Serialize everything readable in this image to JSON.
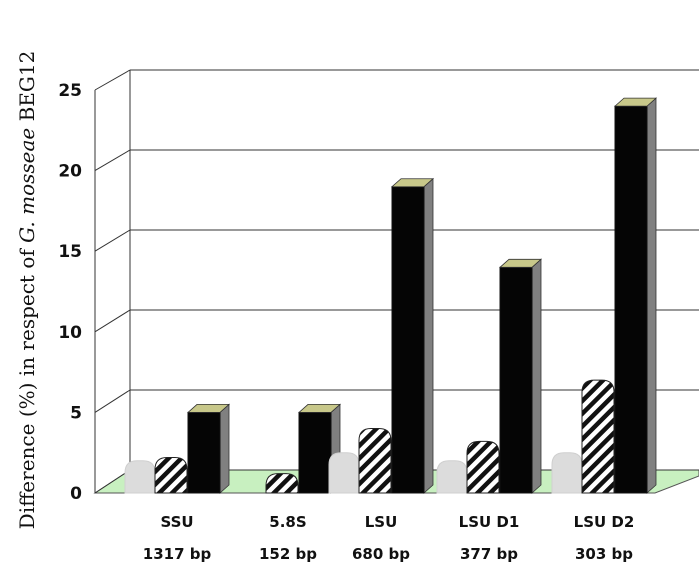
{
  "chart_data": {
    "type": "bar",
    "title": "",
    "xlabel": "",
    "ylabel": {
      "prefix": "Difference (%) in respect of ",
      "species": "G. mosseae",
      "suffix": " BEG12"
    },
    "ylim": [
      0,
      25
    ],
    "yticks": [
      0,
      5,
      10,
      15,
      20,
      25
    ],
    "grid": true,
    "categories": [
      {
        "name": "SSU",
        "length": "1317 bp"
      },
      {
        "name": "5.8S",
        "length": "152 bp"
      },
      {
        "name": "LSU",
        "length": "680 bp"
      },
      {
        "name": "LSU D1",
        "length": "377 bp"
      },
      {
        "name": "LSU D2",
        "length": "303 bp"
      }
    ],
    "series": [
      {
        "values": [
          2,
          0,
          2.5,
          2,
          2.5
        ],
        "fill": "#dcdcdc",
        "pattern": "solid"
      },
      {
        "values": [
          2.2,
          1.2,
          4,
          3.2,
          7
        ],
        "fill": "#ffffff",
        "pattern": "hatched"
      },
      {
        "values": [
          5,
          5,
          19,
          14,
          24
        ],
        "fill": "#050505",
        "pattern": "solid"
      }
    ],
    "colors": {
      "floor": "#c8f0c0",
      "black_top": "#c8c88a",
      "black_side": "#808080",
      "hatch": "#111111",
      "grid": "#333333"
    }
  }
}
